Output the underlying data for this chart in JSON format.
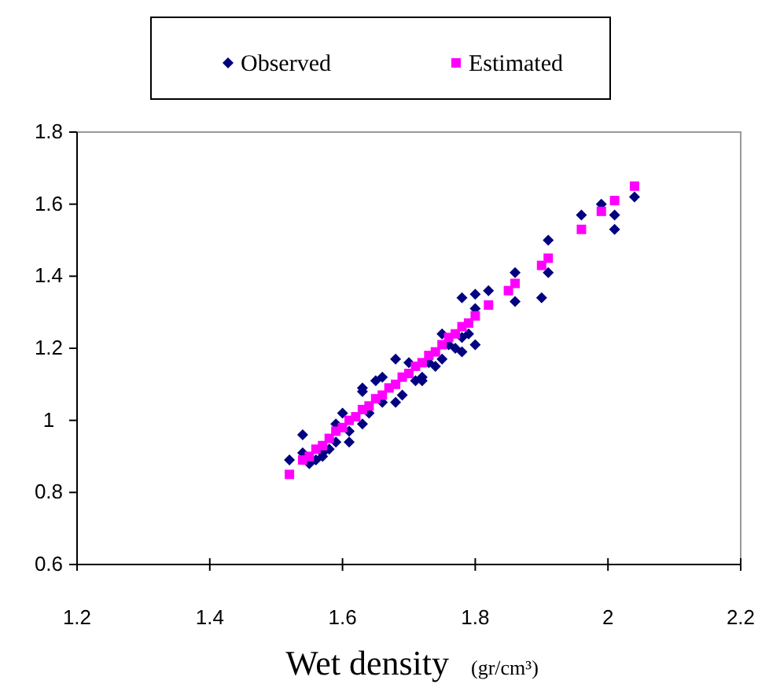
{
  "chart_data": {
    "type": "scatter",
    "xlabel": "Wet density (gr/cm³)",
    "xlim": [
      1.2,
      2.2
    ],
    "xticks": [
      1.2,
      1.4,
      1.6,
      1.8,
      2,
      2.2
    ],
    "ylim": [
      0.6,
      1.8
    ],
    "yticks": [
      0.6,
      0.8,
      1,
      1.2,
      1.4,
      1.6,
      1.8
    ],
    "grid": false,
    "legend": "top",
    "series": [
      {
        "name": "Observed",
        "color": "#000080",
        "marker": "diamond",
        "x": [
          1.52,
          1.54,
          1.54,
          1.55,
          1.56,
          1.57,
          1.57,
          1.58,
          1.59,
          1.59,
          1.6,
          1.61,
          1.61,
          1.63,
          1.63,
          1.63,
          1.64,
          1.65,
          1.66,
          1.66,
          1.68,
          1.68,
          1.69,
          1.7,
          1.71,
          1.72,
          1.72,
          1.73,
          1.74,
          1.75,
          1.75,
          1.76,
          1.77,
          1.78,
          1.78,
          1.78,
          1.79,
          1.8,
          1.8,
          1.8,
          1.82,
          1.86,
          1.86,
          1.9,
          1.91,
          1.91,
          1.96,
          1.99,
          2.01,
          2.01,
          2.04
        ],
        "values": [
          0.89,
          0.96,
          0.91,
          0.88,
          0.89,
          0.9,
          0.91,
          0.92,
          0.94,
          0.99,
          1.02,
          0.94,
          0.97,
          0.99,
          1.09,
          1.08,
          1.02,
          1.11,
          1.12,
          1.05,
          1.17,
          1.05,
          1.07,
          1.16,
          1.11,
          1.11,
          1.12,
          1.16,
          1.15,
          1.17,
          1.24,
          1.21,
          1.2,
          1.19,
          1.34,
          1.23,
          1.24,
          1.35,
          1.31,
          1.21,
          1.36,
          1.41,
          1.33,
          1.34,
          1.5,
          1.41,
          1.57,
          1.6,
          1.57,
          1.53,
          1.62
        ]
      },
      {
        "name": "Estimated",
        "color": "#ff00ff",
        "marker": "square",
        "x": [
          1.52,
          1.54,
          1.55,
          1.56,
          1.57,
          1.58,
          1.59,
          1.6,
          1.61,
          1.62,
          1.63,
          1.64,
          1.65,
          1.66,
          1.67,
          1.68,
          1.69,
          1.7,
          1.71,
          1.72,
          1.73,
          1.74,
          1.75,
          1.76,
          1.77,
          1.78,
          1.79,
          1.8,
          1.82,
          1.85,
          1.86,
          1.9,
          1.91,
          1.96,
          1.99,
          2.01,
          2.04
        ],
        "values": [
          0.85,
          0.89,
          0.9,
          0.92,
          0.93,
          0.95,
          0.97,
          0.98,
          1,
          1.01,
          1.03,
          1.04,
          1.06,
          1.07,
          1.09,
          1.1,
          1.12,
          1.13,
          1.15,
          1.16,
          1.18,
          1.19,
          1.21,
          1.23,
          1.24,
          1.26,
          1.27,
          1.29,
          1.32,
          1.36,
          1.38,
          1.43,
          1.45,
          1.53,
          1.58,
          1.61,
          1.65
        ]
      }
    ]
  }
}
